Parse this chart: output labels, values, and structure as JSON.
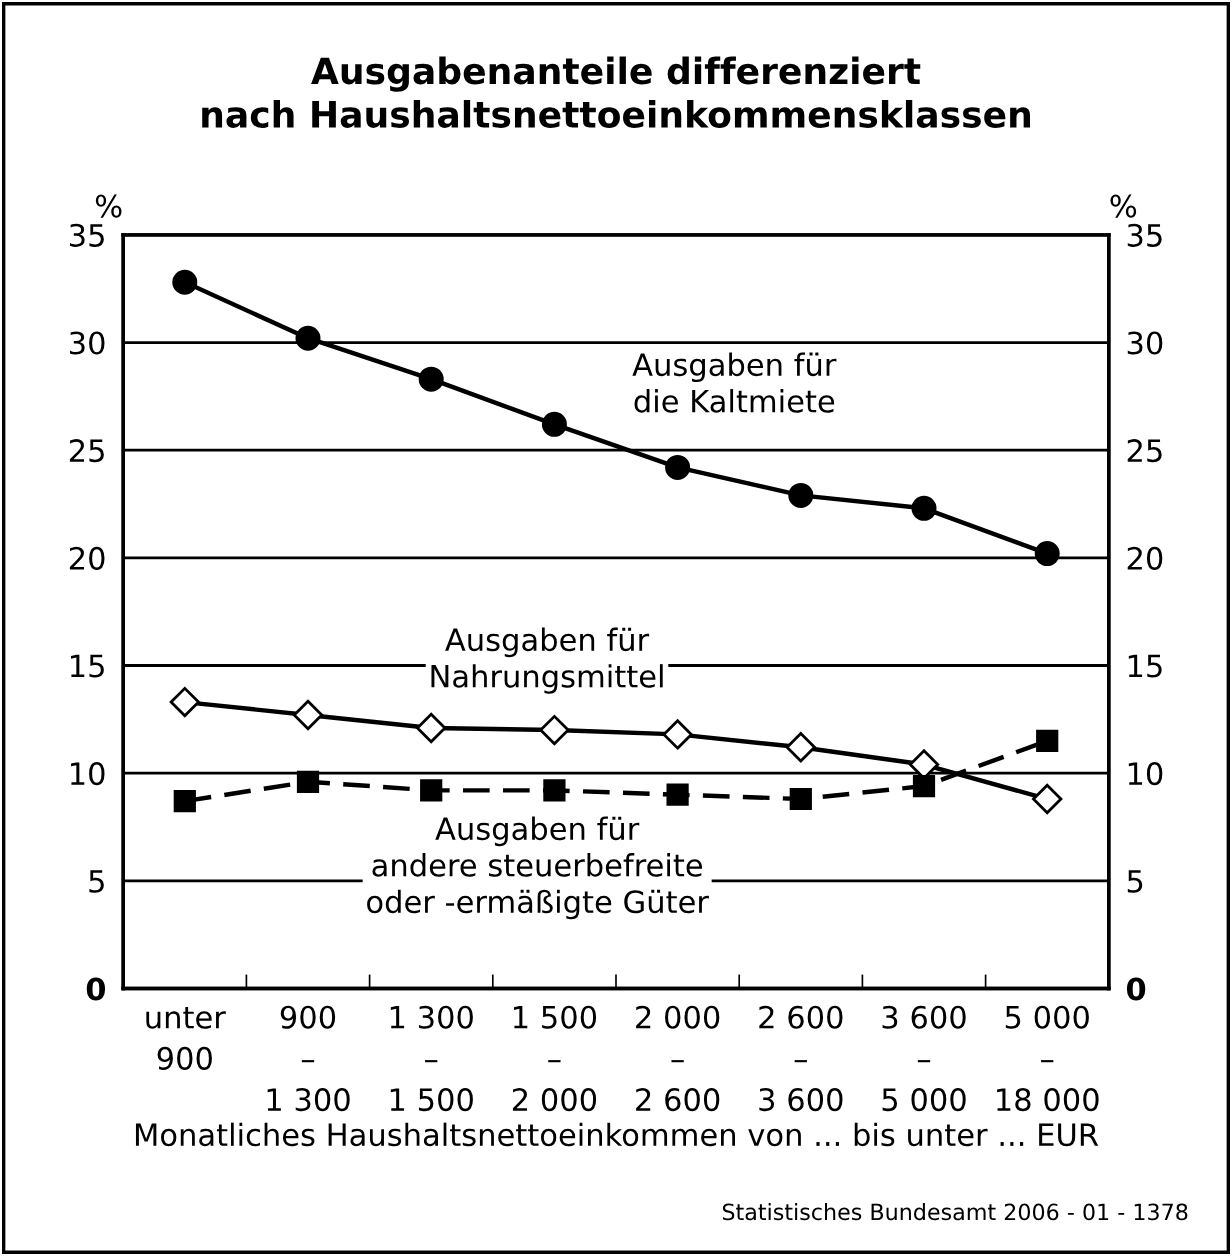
{
  "chart_data": {
    "type": "line",
    "title": "Ausgabenanteile differenziert\nnach Haushaltsnettoeinkommensklassen",
    "xlabel": "Monatliches Haushaltsnettoeinkommen von ... bis unter ... EUR",
    "ylabel": "%",
    "y2label": "%",
    "categories": [
      "unter\n900",
      "900\n–\n1 300",
      "1 300\n–\n1 500",
      "1 500\n–\n2 000",
      "2 000\n–\n2 600",
      "2 600\n–\n3 600",
      "3 600\n–\n5 000",
      "5 000\n–\n18 000"
    ],
    "series": [
      {
        "color": "#000000",
        "marker": "circle",
        "line_style": "solid",
        "values": [
          32.8,
          30.2,
          28.3,
          26.2,
          24.2,
          22.9,
          22.3,
          20.2
        ]
      },
      {
        "color": "#000000",
        "marker": "diamond",
        "line_style": "solid",
        "values": [
          13.3,
          12.7,
          12.1,
          12.0,
          11.8,
          11.2,
          10.4,
          8.8
        ]
      },
      {
        "color": "#000000",
        "marker": "square",
        "line_style": "dashed",
        "values": [
          8.7,
          9.6,
          9.2,
          9.2,
          9.0,
          8.8,
          9.4,
          11.5
        ]
      }
    ],
    "ylim": [
      0,
      35
    ],
    "yticks": [
      0,
      5,
      10,
      15,
      20,
      25,
      30,
      35
    ],
    "y2lim": [
      0,
      35
    ],
    "y2ticks": [
      0,
      5,
      10,
      15,
      20,
      25,
      30,
      35
    ],
    "grid": "y",
    "legend": false,
    "annotations": [
      "Ausgaben für\ndie Kaltmiete",
      "Ausgaben für\nNahrungsmittel",
      "Ausgaben für\nandere steuerbefreite\noder -ermäßigte Güter",
      "Statistisches Bundesamt 2006 - 01 - 1378"
    ]
  }
}
